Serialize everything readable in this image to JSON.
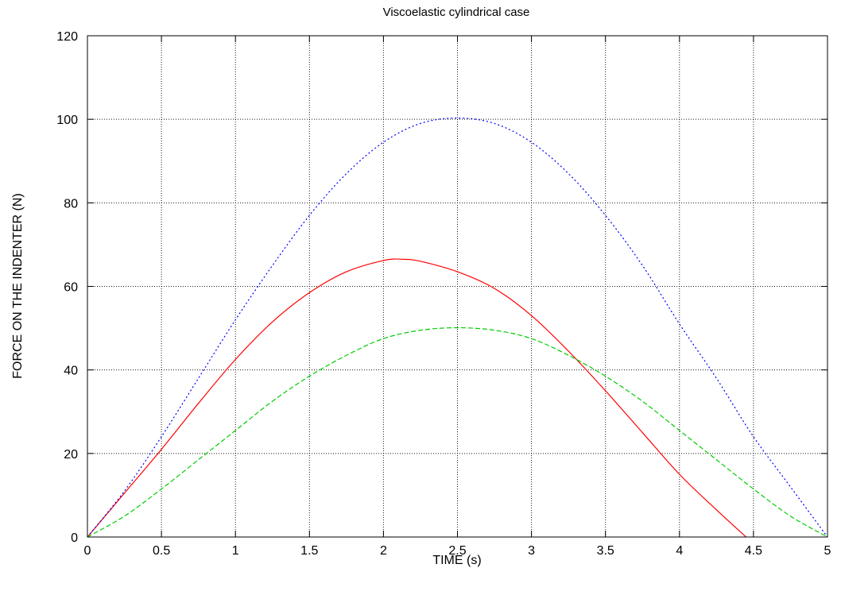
{
  "chart_data": {
    "type": "line",
    "title": "Viscoelastic cylindrical case",
    "xlabel": "TIME (s)",
    "ylabel": "FORCE ON THE INDENTER (N)",
    "xlim": [
      0,
      5
    ],
    "ylim": [
      0,
      120
    ],
    "x_ticks": [
      "0",
      "0.5",
      "1",
      "1.5",
      "2",
      "2.5",
      "3",
      "3.5",
      "4",
      "4.5",
      "5"
    ],
    "y_ticks": [
      "0",
      "20",
      "40",
      "60",
      "80",
      "100",
      "120"
    ],
    "grid": true,
    "series": [
      {
        "color": "#ff0000",
        "style": "solid",
        "x": [
          0,
          0.25,
          0.5,
          0.75,
          1.0,
          1.25,
          1.5,
          1.75,
          2.0,
          2.13,
          2.25,
          2.5,
          2.75,
          3.0,
          3.25,
          3.5,
          3.75,
          4.0,
          4.25,
          4.45
        ],
        "y": [
          0,
          10.5,
          21,
          32,
          42.5,
          51.5,
          58.5,
          63.5,
          66.2,
          66.5,
          66.0,
          63.5,
          59.5,
          53,
          44.5,
          35,
          25,
          15,
          6.5,
          0
        ]
      },
      {
        "color": "#0000ff",
        "style": "dotted",
        "x": [
          0,
          0.25,
          0.5,
          0.75,
          1.0,
          1.25,
          1.5,
          1.75,
          2.0,
          2.25,
          2.5,
          2.75,
          3.0,
          3.25,
          3.5,
          3.75,
          4.0,
          4.25,
          4.5,
          4.75,
          5.0
        ],
        "y": [
          0,
          11,
          24,
          38,
          52,
          65,
          77,
          87,
          94.5,
          99,
          100.3,
          99,
          94.5,
          87,
          77,
          65,
          51,
          38,
          24,
          12,
          0
        ]
      },
      {
        "color": "#00cc00",
        "style": "dashed",
        "x": [
          0,
          0.25,
          0.5,
          0.75,
          1.0,
          1.25,
          1.5,
          1.75,
          2.0,
          2.25,
          2.5,
          2.75,
          3.0,
          3.25,
          3.5,
          3.75,
          4.0,
          4.25,
          4.5,
          4.75,
          5.0
        ],
        "y": [
          0,
          5,
          11.5,
          18.5,
          25.5,
          32.5,
          38.5,
          43.5,
          47.5,
          49.5,
          50.1,
          49.5,
          47.5,
          43.5,
          38.5,
          32.5,
          25.5,
          18.5,
          11.5,
          5,
          0
        ]
      }
    ]
  }
}
